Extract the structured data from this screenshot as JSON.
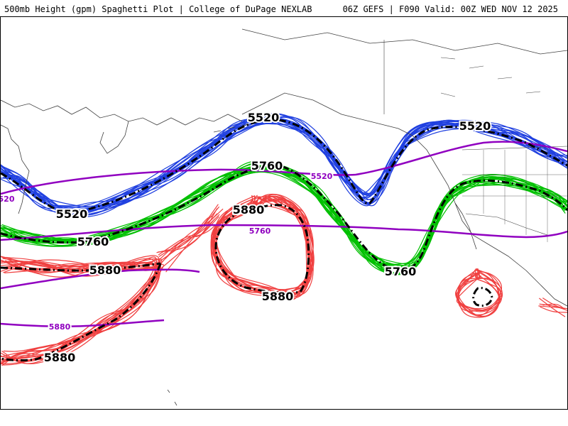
{
  "header": {
    "left_title": "500mb Height (gpm) Spaghetti Plot | College of DuPage NEXLAB",
    "right_title": "06Z GEFS | F090 Valid: 00Z WED NOV 12 2025"
  },
  "colors": {
    "contour_5520": "#2040e0",
    "contour_5760": "#00c000",
    "contour_5880": "#f04040",
    "climatology": "#9000c0",
    "ensemble_mean": "#000000",
    "coastline": "#404040"
  },
  "labels": {
    "mean_5520_a": "5520",
    "mean_5520_b": "5520",
    "mean_5520_c": "5520",
    "mean_5760_a": "5760",
    "mean_5760_b": "5760",
    "mean_5760_c": "5760",
    "mean_5880_a": "5880",
    "mean_5880_b": "5880",
    "mean_5880_c": "5880",
    "mean_5880_d": "5880",
    "clim_5520_a": "5520",
    "clim_5520_b": "520",
    "clim_5760": "5760",
    "clim_5880": "5880"
  }
}
